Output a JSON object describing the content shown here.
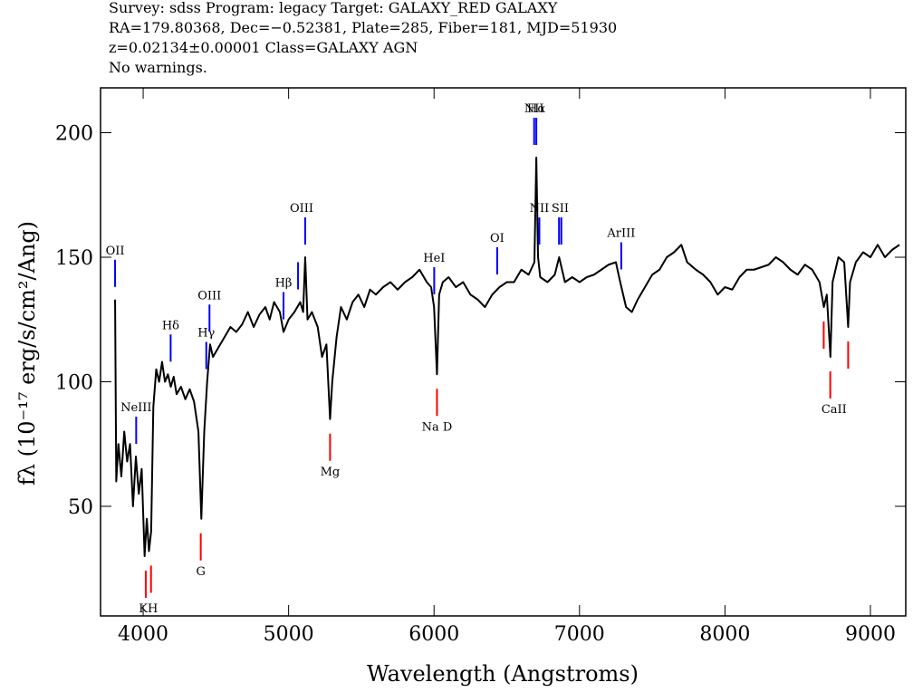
{
  "chart_data": {
    "type": "line",
    "title": [
      "Survey: sdss Program: legacy Target: GALAXY_RED GALAXY",
      "RA=179.80368, Dec=−0.52381, Plate=285, Fiber=181, MJD=51930",
      "z=0.02134±0.00001 Class=GALAXY AGN",
      "No warnings."
    ],
    "xlabel": "Wavelength (Angstroms)",
    "ylabel": "fλ (10⁻¹⁷ erg/s/cm²/Ang)",
    "xlim": [
      3707,
      9243
    ],
    "ylim": [
      6,
      218
    ],
    "xticks": [
      4000,
      5000,
      6000,
      7000,
      8000,
      9000
    ],
    "yticks": [
      50,
      100,
      150,
      200
    ],
    "x": [
      3807,
      3815,
      3830,
      3850,
      3870,
      3890,
      3910,
      3930,
      3950,
      3970,
      3990,
      4010,
      4025,
      4040,
      4055,
      4070,
      4090,
      4110,
      4130,
      4150,
      4170,
      4190,
      4210,
      4230,
      4260,
      4290,
      4320,
      4350,
      4380,
      4400,
      4420,
      4440,
      4460,
      4480,
      4500,
      4530,
      4560,
      4600,
      4640,
      4680,
      4720,
      4760,
      4800,
      4840,
      4870,
      4900,
      4940,
      4965,
      5000,
      5040,
      5080,
      5100,
      5114,
      5130,
      5160,
      5200,
      5230,
      5260,
      5285,
      5300,
      5330,
      5360,
      5400,
      5440,
      5480,
      5520,
      5560,
      5600,
      5650,
      5700,
      5750,
      5800,
      5850,
      5900,
      5950,
      5980,
      6000,
      6020,
      6035,
      6060,
      6100,
      6150,
      6200,
      6250,
      6300,
      6350,
      6400,
      6450,
      6500,
      6550,
      6600,
      6650,
      6690,
      6703,
      6715,
      6730,
      6780,
      6830,
      6860,
      6900,
      6950,
      7000,
      7050,
      7100,
      7150,
      7200,
      7250,
      7280,
      7320,
      7360,
      7400,
      7450,
      7500,
      7550,
      7600,
      7650,
      7700,
      7740,
      7800,
      7850,
      7900,
      7950,
      8000,
      8050,
      8100,
      8150,
      8200,
      8300,
      8350,
      8400,
      8450,
      8500,
      8550,
      8600,
      8650,
      8680,
      8700,
      8725,
      8740,
      8780,
      8820,
      8847,
      8860,
      8900,
      8950,
      9000,
      9050,
      9100,
      9150,
      9200
    ],
    "series": [
      {
        "color": "#000000",
        "values": [
          133,
          60,
          75,
          62,
          80,
          68,
          75,
          50,
          70,
          55,
          65,
          30,
          45,
          32,
          40,
          90,
          105,
          100,
          108,
          100,
          103,
          98,
          102,
          95,
          98,
          93,
          97,
          92,
          80,
          45,
          80,
          100,
          115,
          110,
          112,
          115,
          118,
          122,
          120,
          123,
          128,
          122,
          127,
          130,
          125,
          132,
          128,
          120,
          125,
          128,
          132,
          128,
          150,
          125,
          128,
          122,
          110,
          115,
          85,
          100,
          118,
          130,
          125,
          132,
          135,
          130,
          137,
          135,
          138,
          140,
          137,
          140,
          142,
          145,
          140,
          138,
          130,
          103,
          135,
          140,
          142,
          138,
          140,
          135,
          133,
          130,
          135,
          138,
          140,
          140,
          145,
          143,
          148,
          190,
          150,
          142,
          140,
          143,
          150,
          140,
          142,
          140,
          142,
          143,
          145,
          147,
          148,
          140,
          130,
          128,
          133,
          138,
          143,
          145,
          150,
          152,
          155,
          148,
          145,
          143,
          140,
          135,
          138,
          137,
          142,
          145,
          145,
          147,
          150,
          148,
          145,
          143,
          147,
          145,
          140,
          130,
          135,
          110,
          140,
          150,
          148,
          122,
          140,
          148,
          152,
          150,
          155,
          150,
          153,
          155
        ]
      }
    ],
    "emission": {
      "color": "#0000ff",
      "lines": [
        {
          "label": "OII",
          "x": [
            3807
          ]
        },
        {
          "label": "NeIII",
          "x": [
            3952
          ]
        },
        {
          "label": "Hδ",
          "x": [
            4189
          ]
        },
        {
          "label": "Hγ",
          "x": [
            4434
          ]
        },
        {
          "label": "OIII",
          "x": [
            4456
          ]
        },
        {
          "label": "Hβ",
          "x": [
            4965
          ]
        },
        {
          "label": "OIII",
          "x": [
            5065,
            5114
          ]
        },
        {
          "label": "HeI",
          "x": [
            6001
          ]
        },
        {
          "label": "OI",
          "x": [
            6434
          ]
        },
        {
          "label": "NII",
          "x": [
            6688
          ]
        },
        {
          "label": "Hα",
          "x": [
            6703
          ]
        },
        {
          "label": "NII",
          "x": [
            6724
          ]
        },
        {
          "label": "SII",
          "x": [
            6859,
            6875
          ]
        },
        {
          "label": "ArIII",
          "x": [
            7287
          ]
        }
      ]
    },
    "absorption": {
      "color": "#ff0000",
      "lines": [
        {
          "label": "KH",
          "x": [
            4018,
            4054
          ]
        },
        {
          "label": "G",
          "x": [
            4396
          ]
        },
        {
          "label": "Mg",
          "x": [
            5285
          ]
        },
        {
          "label": "Na  D",
          "x": [
            6020
          ]
        },
        {
          "label": "CaII",
          "x": [
            8679,
            8724,
            8847
          ]
        }
      ]
    }
  }
}
